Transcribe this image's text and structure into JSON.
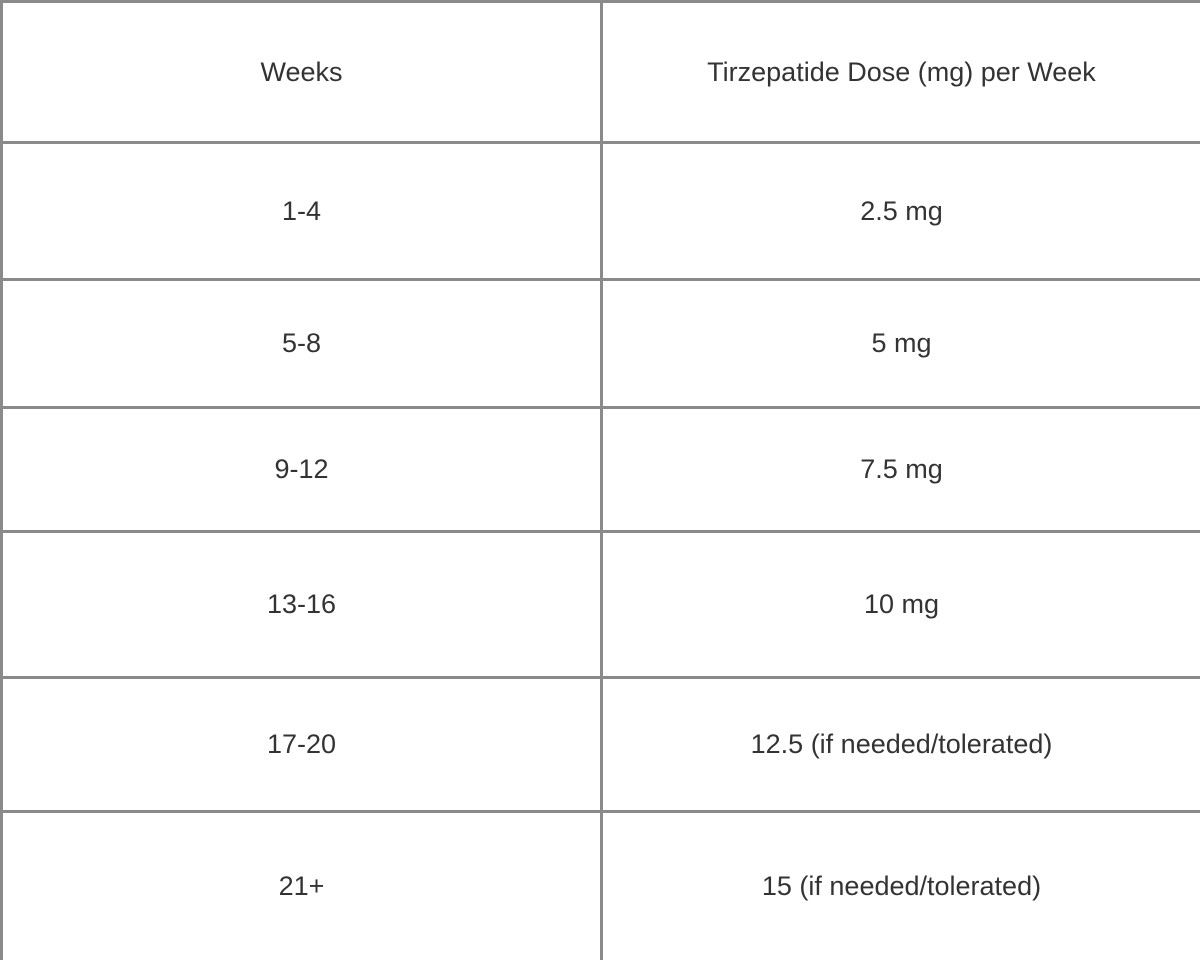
{
  "table": {
    "header": [
      "Weeks",
      "Tirzepatide Dose (mg) per Week"
    ],
    "rows": [
      [
        "1-4",
        "2.5 mg"
      ],
      [
        "5-8",
        "5 mg"
      ],
      [
        "9-12",
        "7.5 mg"
      ],
      [
        "13-16",
        "10 mg"
      ],
      [
        "17-20",
        "12.5 (if needed/tolerated)"
      ],
      [
        "21+",
        "15 (if needed/tolerated)"
      ]
    ]
  }
}
